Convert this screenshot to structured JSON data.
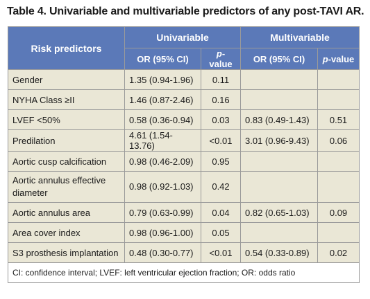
{
  "title": "Table 4. Univariable and multivariable predictors of any post-TAVI AR.",
  "header": {
    "risk_predictors": "Risk predictors",
    "univariable": "Univariable",
    "multivariable": "Multivariable",
    "or_ci": "OR (95% CI)",
    "p_label": "p",
    "p_suffix": "-value"
  },
  "rows": [
    {
      "predictor": "Gender",
      "uni_or": "1.35 (0.94-1.96)",
      "uni_p": "0.11",
      "multi_or": "",
      "multi_p": ""
    },
    {
      "predictor": "NYHA Class ≥II",
      "uni_or": "1.46 (0.87-2.46)",
      "uni_p": "0.16",
      "multi_or": "",
      "multi_p": ""
    },
    {
      "predictor": "LVEF <50%",
      "uni_or": "0.58 (0.36-0.94)",
      "uni_p": "0.03",
      "multi_or": "0.83 (0.49-1.43)",
      "multi_p": "0.51"
    },
    {
      "predictor": "Predilation",
      "uni_or": "4.61 (1.54-13.76)",
      "uni_p": "<0.01",
      "multi_or": "3.01 (0.96-9.43)",
      "multi_p": "0.06"
    },
    {
      "predictor": "Aortic cusp calcification",
      "uni_or": "0.98 (0.46-2.09)",
      "uni_p": "0.95",
      "multi_or": "",
      "multi_p": ""
    },
    {
      "predictor": "Aortic annulus effective diameter",
      "uni_or": "0.98 (0.92-1.03)",
      "uni_p": "0.42",
      "multi_or": "",
      "multi_p": ""
    },
    {
      "predictor": "Aortic annulus area",
      "uni_or": "0.79 (0.63-0.99)",
      "uni_p": "0.04",
      "multi_or": "0.82 (0.65-1.03)",
      "multi_p": "0.09"
    },
    {
      "predictor": "Area cover index",
      "uni_or": "0.98 (0.96-1.00)",
      "uni_p": "0.05",
      "multi_or": "",
      "multi_p": ""
    },
    {
      "predictor": "S3 prosthesis implantation",
      "uni_or": "0.48 (0.30-0.77)",
      "uni_p": "<0.01",
      "multi_or": "0.54 (0.33-0.89)",
      "multi_p": "0.02"
    }
  ],
  "footnote": "CI: confidence interval; LVEF: left ventricular ejection fraction; OR: odds ratio"
}
